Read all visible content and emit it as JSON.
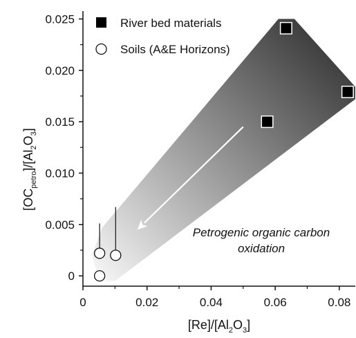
{
  "chart_data": {
    "type": "scatter",
    "xlabel": {
      "parts": [
        "[Re]/[Al",
        "2",
        "O",
        "3",
        "]"
      ]
    },
    "ylabel": {
      "parts": [
        "[OC",
        "petro",
        "]/[Al",
        "2",
        "O",
        "3",
        "]"
      ]
    },
    "xlim": [
      0,
      0.085
    ],
    "ylim": [
      -0.001,
      0.0255
    ],
    "xticks": [
      "0",
      "0.02",
      "0.04",
      "0.06",
      "0.08"
    ],
    "xtick_values": [
      0,
      0.02,
      0.04,
      0.06,
      0.08
    ],
    "yticks": [
      "0",
      "0.005",
      "0.010",
      "0.015",
      "0.020",
      "0.025"
    ],
    "ytick_values": [
      0,
      0.005,
      0.01,
      0.015,
      0.02,
      0.025
    ],
    "grid": false,
    "legend_position": "top-left",
    "series": [
      {
        "name": "River bed materials",
        "marker": "filled-square",
        "color": "#000000",
        "points": [
          {
            "x": 0.0634,
            "y": 0.0241
          },
          {
            "x": 0.0575,
            "y": 0.015
          },
          {
            "x": 0.0826,
            "y": 0.0179
          }
        ]
      },
      {
        "name": "Soils (A&E Horizons)",
        "marker": "open-circle",
        "color": "#000000",
        "points": [
          {
            "x": 0.0052,
            "y": 0.0022,
            "yerr_low": 0.0,
            "yerr_high": 0.0029
          },
          {
            "x": 0.0052,
            "y": 0.0,
            "yerr_low": 0.0,
            "yerr_high": 0.0
          },
          {
            "x": 0.0102,
            "y": 0.002,
            "yerr_low": 0.0,
            "yerr_high": 0.0047
          }
        ]
      }
    ],
    "annotation": {
      "lines": [
        "Petrogenic organic carbon",
        "oxidation"
      ],
      "arrow_from": {
        "x": 0.05,
        "y": 0.0145
      },
      "arrow_to": {
        "x": 0.017,
        "y": 0.0045
      }
    },
    "shaded_region": {
      "polygon": [
        [
          0.0051,
          -0.0005
        ],
        [
          0.01,
          -0.0005
        ],
        [
          0.085,
          0.0172
        ],
        [
          0.085,
          0.0184
        ],
        [
          0.066,
          0.025
        ],
        [
          0.061,
          0.025
        ],
        [
          0.006,
          0.0047
        ],
        [
          0.0028,
          0.002
        ]
      ],
      "color_light": "#f4f4f4",
      "color_dark": "#3c3c3c"
    }
  }
}
